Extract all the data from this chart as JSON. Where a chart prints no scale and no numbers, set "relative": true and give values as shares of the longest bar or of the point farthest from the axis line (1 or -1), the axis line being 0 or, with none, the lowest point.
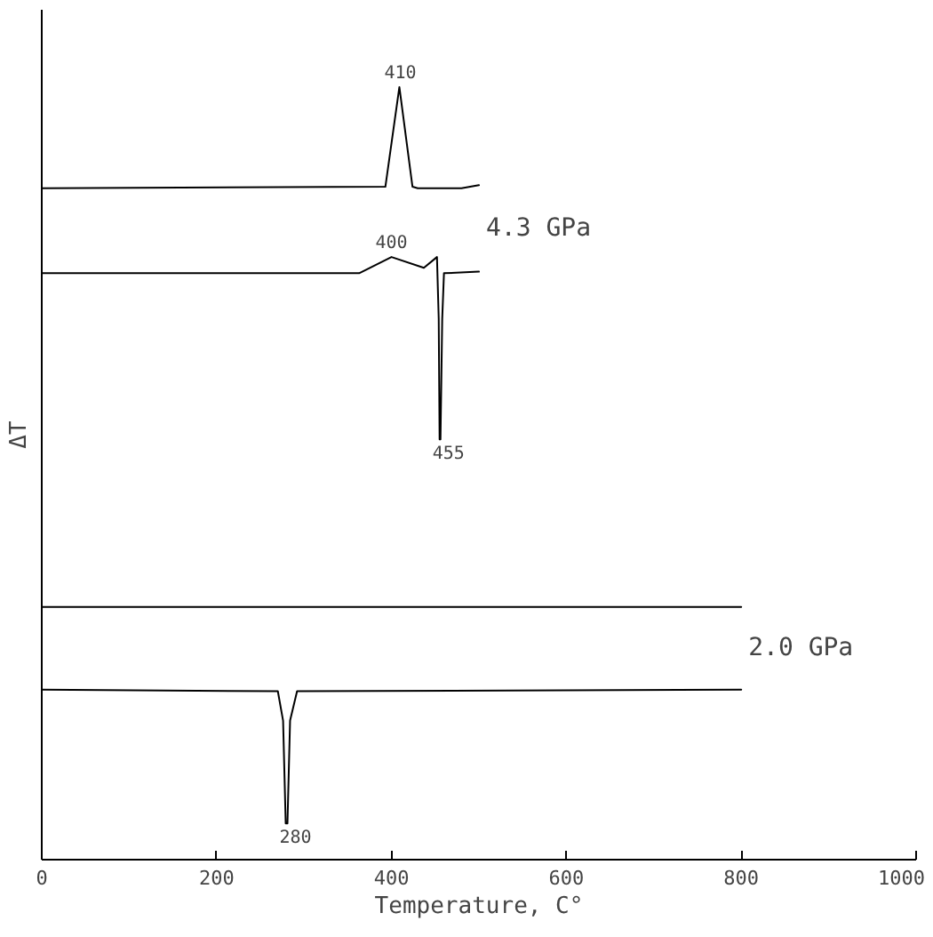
{
  "chart_data": {
    "type": "line",
    "relative": true,
    "xlabel": "Temperature, C°",
    "ylabel": "ΔT",
    "xlim": [
      0,
      1000
    ],
    "xticks": [
      0,
      200,
      400,
      600,
      800,
      1000
    ],
    "series": [
      {
        "color": "#000000",
        "x": [
          500,
          480,
          430,
          424,
          409,
          393,
          0
        ],
        "values": [
          0.873,
          0.869,
          0.869,
          0.871,
          1,
          0.871,
          0.869
        ]
      },
      {
        "color": "#000000",
        "x": [
          0,
          363,
          400,
          437,
          452,
          454,
          455,
          456,
          458,
          460,
          500
        ],
        "values": [
          0.759,
          0.759,
          0.78,
          0.766,
          0.78,
          0.7,
          0.544,
          0.544,
          0.7,
          0.759,
          0.761
        ]
      },
      {
        "color": "#000000",
        "x": [
          800,
          0
        ],
        "values": [
          0.327,
          0.327
        ]
      },
      {
        "color": "#000000",
        "x": [
          0,
          270,
          276,
          279,
          281,
          284,
          292,
          800
        ],
        "values": [
          0.22,
          0.218,
          0.18,
          0.047,
          0.047,
          0.18,
          0.218,
          0.22
        ]
      }
    ],
    "annotations": [
      {
        "text": "410",
        "x": 410,
        "y": 1
      },
      {
        "text": "400",
        "x": 400,
        "y": 0.78
      },
      {
        "text": "455",
        "x": 455,
        "y": 0.544
      },
      {
        "text": "280",
        "x": 280,
        "y": 0.047
      },
      "4.3 GPa",
      "2.0 GPa"
    ],
    "grid": false,
    "tick_labels": "x"
  }
}
